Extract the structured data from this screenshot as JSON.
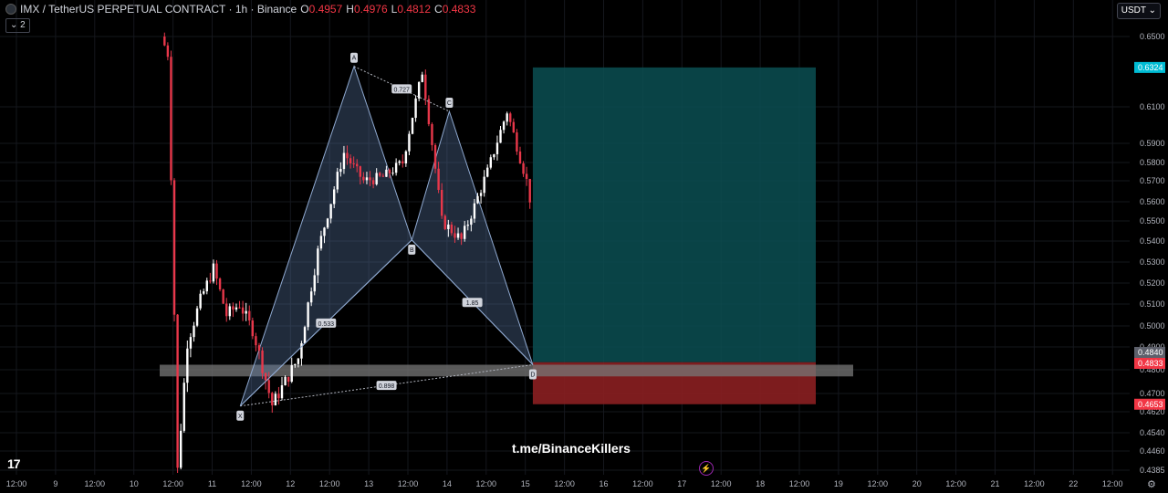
{
  "header": {
    "title": "IMX / TetherUS PERPETUAL CONTRACT · 1h · Binance",
    "o_label": "O",
    "o_value": "0.4957",
    "h_label": "H",
    "h_value": "0.4976",
    "l_label": "L",
    "l_value": "0.4812",
    "c_label": "C",
    "c_value": "0.4833",
    "indicator_count": "2",
    "currency": "USDT"
  },
  "watermark": "t.me/BinanceKillers",
  "logo": "17",
  "colors": {
    "up": "#ffffff",
    "down": "#e8374a",
    "pattern_fill": "#5d7ca8",
    "target_zone": "#0a4f52",
    "stop_zone": "#8b1f21",
    "support_zone": "#777777"
  },
  "chart_data": {
    "type": "candlestick",
    "x_ticks": [
      "12:00",
      "9",
      "12:00",
      "10",
      "12:00",
      "11",
      "12:00",
      "12",
      "12:00",
      "13",
      "12:00",
      "14",
      "12:00",
      "15",
      "12:00",
      "16",
      "12:00",
      "17",
      "12:00",
      "18",
      "12:00",
      "19",
      "12:00",
      "20",
      "12:00",
      "21",
      "12:00",
      "22",
      "12:00"
    ],
    "y_ticks": [
      "0.6500",
      "0.6100",
      "0.5900",
      "0.5800",
      "0.5700",
      "0.5600",
      "0.5500",
      "0.5400",
      "0.5300",
      "0.5200",
      "0.5100",
      "0.5000",
      "0.4900",
      "0.4800",
      "0.4700",
      "0.4620",
      "0.4540",
      "0.4460",
      "0.4385"
    ],
    "price_labels": [
      {
        "text": "0.6324",
        "color": "#00bcd4"
      },
      {
        "text": "0.4840",
        "color": "#5d606b"
      },
      {
        "text": "0.4833",
        "color": "#f23645"
      },
      {
        "text": "0.4653",
        "color": "#f23645"
      }
    ],
    "pattern_points": [
      {
        "label": "X",
        "price": 0.4645
      },
      {
        "label": "A",
        "price": 0.633
      },
      {
        "label": "B",
        "price": 0.5405
      },
      {
        "label": "C",
        "price": 0.6075
      },
      {
        "label": "D",
        "price": 0.4822
      }
    ],
    "ratios": [
      {
        "text": "0.533",
        "between": "XB"
      },
      {
        "text": "0.727",
        "between": "AC"
      },
      {
        "text": "1.85",
        "between": "BD"
      },
      {
        "text": "0.898",
        "between": "XD"
      }
    ],
    "target_zone": [
      0.4833,
      0.6324
    ],
    "stop_zone": [
      0.4653,
      0.4833
    ],
    "support_zone": [
      0.4772,
      0.4822
    ]
  }
}
